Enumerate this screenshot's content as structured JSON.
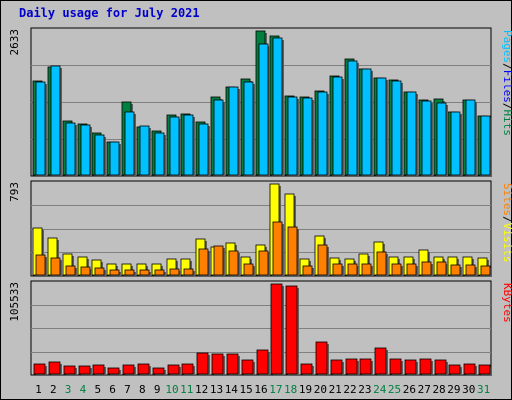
{
  "colors": {
    "background": "#c0c0c0",
    "title": "#0000cc",
    "hits": "#008040",
    "files": "#00c0ff",
    "pages": "#00e0ff",
    "visits": "#ffff00",
    "sites": "#ff8000",
    "kbytes": "#ff0000",
    "weekend_label": "#008040"
  },
  "chart_data": {
    "type": "bar",
    "title": "Daily usage for July 2021",
    "days": [
      "1",
      "2",
      "3",
      "4",
      "5",
      "6",
      "7",
      "8",
      "9",
      "10",
      "11",
      "12",
      "13",
      "14",
      "15",
      "16",
      "17",
      "18",
      "19",
      "20",
      "21",
      "22",
      "23",
      "24",
      "25",
      "26",
      "27",
      "28",
      "29",
      "30",
      "31"
    ],
    "weekend_days": [
      "3",
      "4",
      "10",
      "11",
      "17",
      "18",
      "24",
      "25",
      "31"
    ],
    "panels": [
      {
        "name": "hits-files-pages",
        "max_label": "2633",
        "ymax": 2633,
        "legend": [
          {
            "text": "Pages",
            "color": "#00c0ff"
          },
          {
            "text": "Files",
            "color": "#0000ff"
          },
          {
            "text": "Hits",
            "color": "#008040"
          }
        ],
        "series": [
          {
            "name": "Hits",
            "values": [
              1720,
              1970,
              980,
              940,
              760,
              600,
              1330,
              880,
              810,
              1100,
              1110,
              970,
              1420,
              1610,
              1750,
              2633,
              2533,
              1440,
              1430,
              1530,
              1810,
              2120,
              1940,
              1780,
              1730,
              1520,
              1380,
              1390,
              1150,
              1370,
              1080
            ]
          },
          {
            "name": "Files",
            "values": [
              1700,
              1990,
              950,
              910,
              730,
              600,
              1150,
              890,
              770,
              1060,
              1100,
              930,
              1380,
              1600,
              1700,
              2400,
              2500,
              1420,
              1400,
              1510,
              1790,
              2080,
              1940,
              1780,
              1720,
              1510,
              1350,
              1320,
              1160,
              1370,
              1080
            ]
          }
        ]
      },
      {
        "name": "visits-sites",
        "max_label": "793",
        "ymax": 793,
        "legend": [
          {
            "text": "Sites",
            "color": "#ff8000"
          },
          {
            "text": "Visits",
            "color": "#ffff00"
          }
        ],
        "series": [
          {
            "name": "Visits",
            "values": [
              410,
              320,
              180,
              160,
              130,
              100,
              100,
              100,
              100,
              140,
              140,
              310,
              240,
              280,
              160,
              260,
              793,
              710,
              140,
              340,
              150,
              140,
              180,
              290,
              160,
              160,
              220,
              160,
              160,
              160,
              150
            ]
          },
          {
            "name": "Sites",
            "values": [
              170,
              150,
              75,
              70,
              60,
              40,
              45,
              40,
              45,
              50,
              55,
              230,
              250,
              210,
              100,
              210,
              460,
              420,
              75,
              260,
              100,
              100,
              100,
              200,
              100,
              100,
              110,
              110,
              85,
              85,
              75
            ]
          }
        ]
      },
      {
        "name": "kbytes",
        "max_label": "105533",
        "ymax": 105533,
        "legend": [
          {
            "text": "KBytes",
            "color": "#ff0000"
          }
        ],
        "series": [
          {
            "name": "KBytes",
            "values": [
              12000,
              14000,
              9000,
              9000,
              10000,
              7000,
              10000,
              12000,
              7000,
              10000,
              12000,
              25000,
              24000,
              24000,
              16000,
              28000,
              105533,
              103000,
              12000,
              38000,
              16000,
              18000,
              18000,
              31000,
              18000,
              16000,
              18000,
              16000,
              11000,
              12000,
              11000
            ]
          }
        ]
      }
    ]
  }
}
